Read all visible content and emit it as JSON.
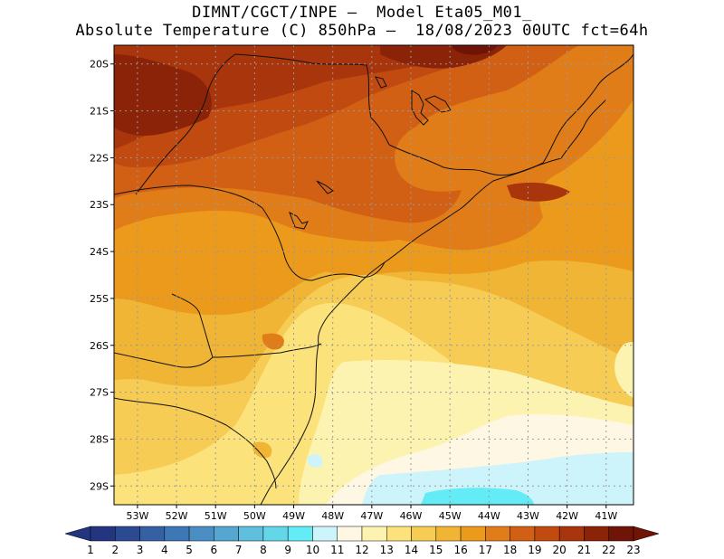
{
  "header": {
    "line1": "DIMNT/CGCT/INPE –  Model Eta05_M01_",
    "line2": "Absolute Temperature (C) 850hPa –  18/08/2023 00UTC fct=64h"
  },
  "map": {
    "lat_labels": [
      "20S",
      "21S",
      "22S",
      "23S",
      "24S",
      "25S",
      "26S",
      "27S",
      "28S",
      "29S"
    ],
    "lon_labels": [
      "53W",
      "52W",
      "51W",
      "50W",
      "49W",
      "48W",
      "47W",
      "46W",
      "45W",
      "44W",
      "43W",
      "42W",
      "41W"
    ],
    "lat_values": [
      -20,
      -21,
      -22,
      -23,
      -24,
      -25,
      -26,
      -27,
      -28,
      -29
    ],
    "lon_values": [
      -53,
      -52,
      -51,
      -50,
      -49,
      -48,
      -47,
      -46,
      -45,
      -44,
      -43,
      -42,
      -41
    ],
    "lat_range": [
      -29.4,
      -19.6
    ],
    "lon_range": [
      -53.6,
      -40.3
    ]
  },
  "colorbar": {
    "labels": [
      "1",
      "2",
      "3",
      "4",
      "5",
      "6",
      "7",
      "8",
      "9",
      "10",
      "11",
      "12",
      "13",
      "14",
      "15",
      "16",
      "17",
      "18",
      "19",
      "20",
      "21",
      "22",
      "23"
    ],
    "colors": [
      "#23357f",
      "#2c4a91",
      "#3560a3",
      "#3d77b5",
      "#4a8ec4",
      "#55a6d0",
      "#5fbfdc",
      "#63d6e8",
      "#64ecf6",
      "#cdf3fb",
      "#fdf7e4",
      "#fdf3b0",
      "#fbe27a",
      "#f6cc55",
      "#f0b534",
      "#ec9a1c",
      "#e07d18",
      "#d26014",
      "#c04a10",
      "#a8350c",
      "#8a2308",
      "#6f1406"
    ]
  }
}
